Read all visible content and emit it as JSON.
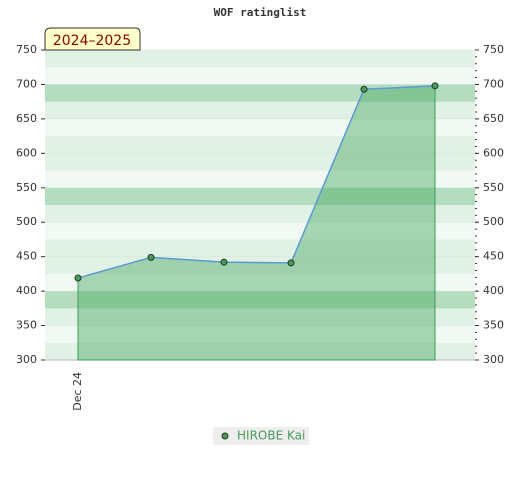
{
  "chart_data": {
    "type": "line",
    "title": "WOF ratinglist",
    "badge": "2024–2025",
    "categories": [
      "Dec 24",
      null,
      null,
      null,
      null,
      null
    ],
    "series": [
      {
        "name": "HIROBE Kai",
        "color": "#4a9a5a",
        "values": [
          419,
          449,
          442,
          441,
          693,
          698
        ]
      }
    ],
    "ylim": [
      300,
      750
    ],
    "yticks": [
      300,
      350,
      400,
      450,
      500,
      550,
      600,
      650,
      700,
      750
    ],
    "y2lim": [
      300,
      750
    ],
    "y2ticks": [
      300,
      350,
      400,
      450,
      500,
      550,
      600,
      650,
      700,
      750
    ],
    "grid": true
  }
}
